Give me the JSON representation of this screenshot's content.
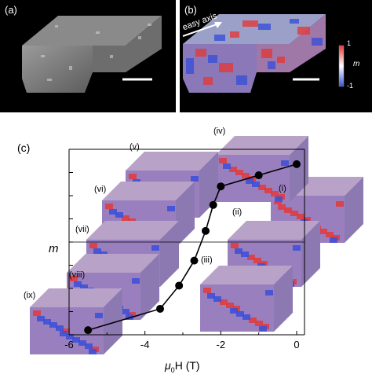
{
  "panels": {
    "a": {
      "label": "(a)"
    },
    "b": {
      "label": "(b)",
      "annotation": "easy axis",
      "colorbar": {
        "max_label": "1",
        "min_label": "-1",
        "quantity": "m"
      }
    },
    "c": {
      "label": "(c)"
    }
  },
  "chart_data": {
    "type": "line",
    "xlabel_main": "μ",
    "xlabel_sub": "0",
    "xlabel_tail": "H (T)",
    "ylabel": "m",
    "xlim": [
      -6,
      0.3
    ],
    "xticks": [
      "-6",
      "-4",
      "-2",
      "0"
    ],
    "series": [
      {
        "x": [
          -5.5,
          -3.6,
          -3.1,
          -2.7,
          -2.4,
          -2.2,
          -2.0,
          -1.0,
          0.0
        ],
        "y": [
          -0.95,
          -0.72,
          -0.47,
          -0.2,
          0.12,
          0.4,
          0.6,
          0.72,
          0.84
        ]
      }
    ],
    "snapshot_labels": [
      "(i)",
      "(ii)",
      "(iii)",
      "(iv)",
      "(v)",
      "(vi)",
      "(vii)",
      "(viii)",
      "(ix)"
    ]
  },
  "colors": {
    "red": "#e23a3a",
    "blue": "#3a4fd8",
    "gray": "#a8a8a8",
    "marker": "#000000"
  }
}
